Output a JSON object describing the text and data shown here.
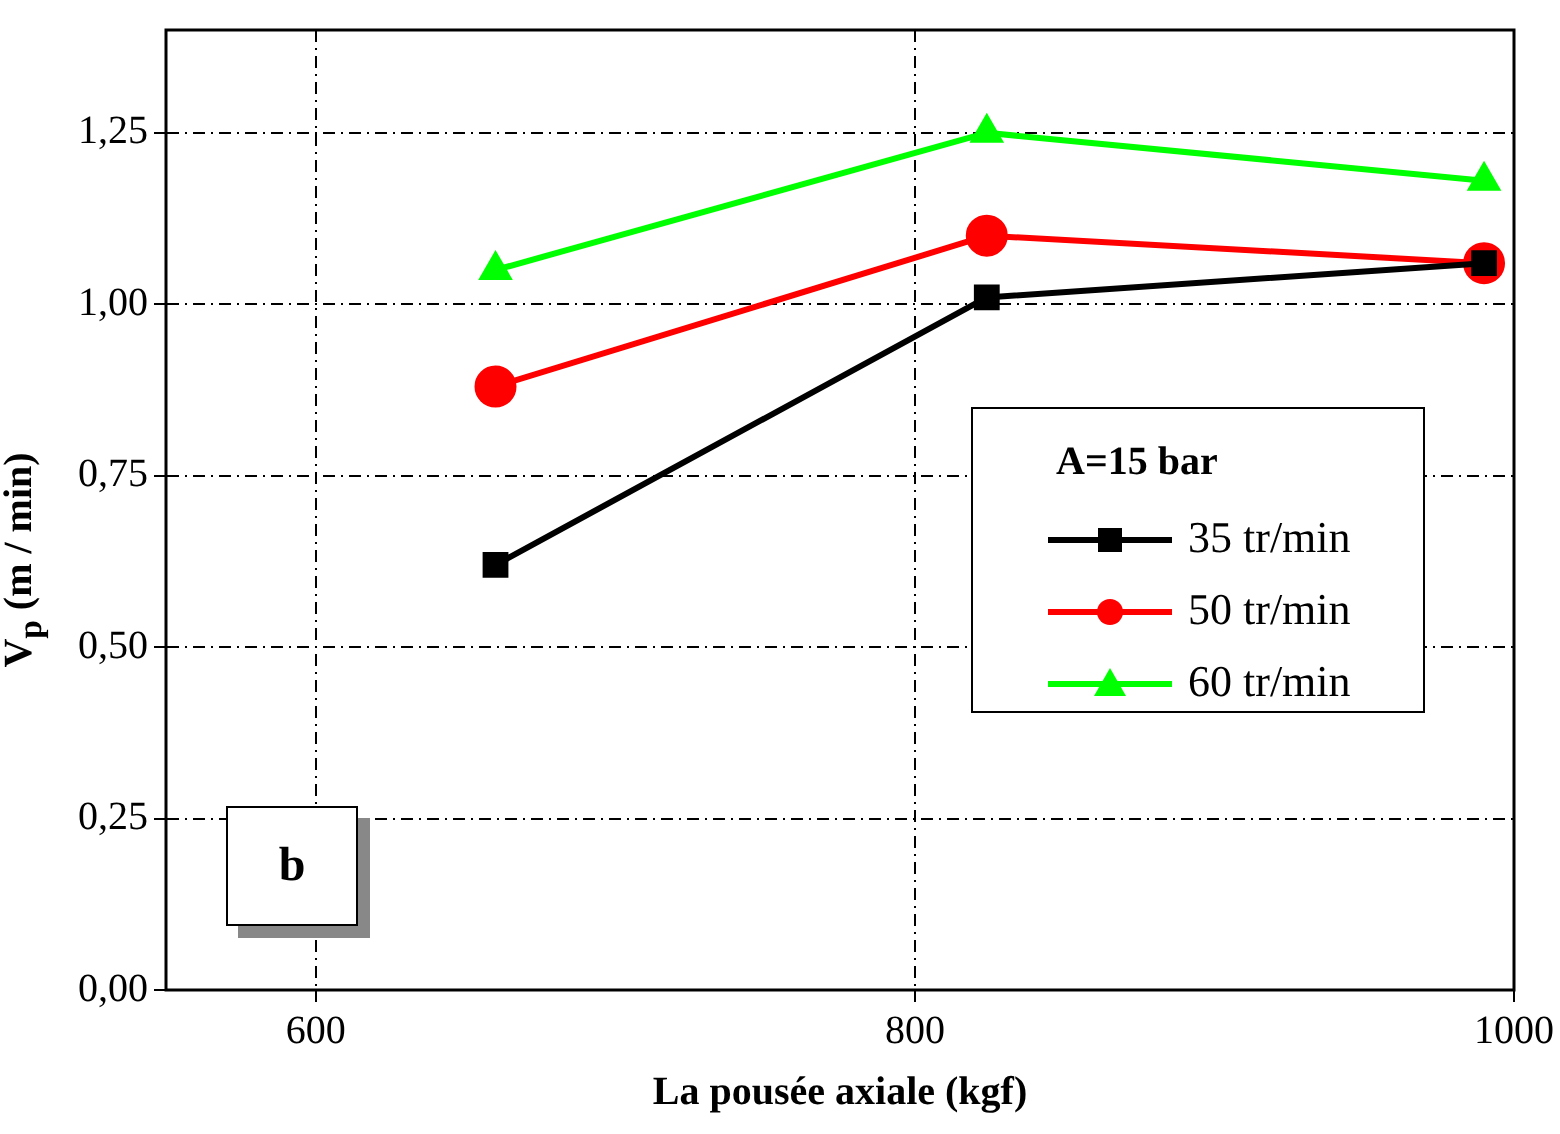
{
  "chart_data": {
    "type": "line",
    "xlabel": "La pousée axiale (kgf)",
    "ylabel": "V$_{p}$ (m / min)",
    "legend_title": "A=15 bar",
    "legend": "right",
    "grid": true,
    "line_style": "solid",
    "x": [
      660,
      824,
      990
    ],
    "xlim": [
      550,
      1000
    ],
    "xticks": [
      600,
      800,
      1000
    ],
    "ylim": [
      0,
      1.4
    ],
    "yticks": [
      {
        "value": 0,
        "label": "0,00"
      },
      {
        "value": 0.25,
        "label": "0,25"
      },
      {
        "value": 0.5,
        "label": "0,50"
      },
      {
        "value": 0.75,
        "label": "0,75"
      },
      {
        "value": 1,
        "label": "1,00"
      },
      {
        "value": 1.25,
        "label": "1,25"
      }
    ],
    "annotations": [
      "b"
    ],
    "series": [
      {
        "name": "35 tr/min",
        "color": "#000000",
        "marker": "square",
        "values": [
          0.62,
          1.01,
          1.06
        ]
      },
      {
        "name": "50 tr/min",
        "color": "#ff0000",
        "marker": "circle",
        "values": [
          0.88,
          1.1,
          1.06
        ]
      },
      {
        "name": "60 tr/min",
        "color": "#00ff00",
        "marker": "triangle",
        "values": [
          1.05,
          1.25,
          1.18
        ]
      }
    ]
  }
}
